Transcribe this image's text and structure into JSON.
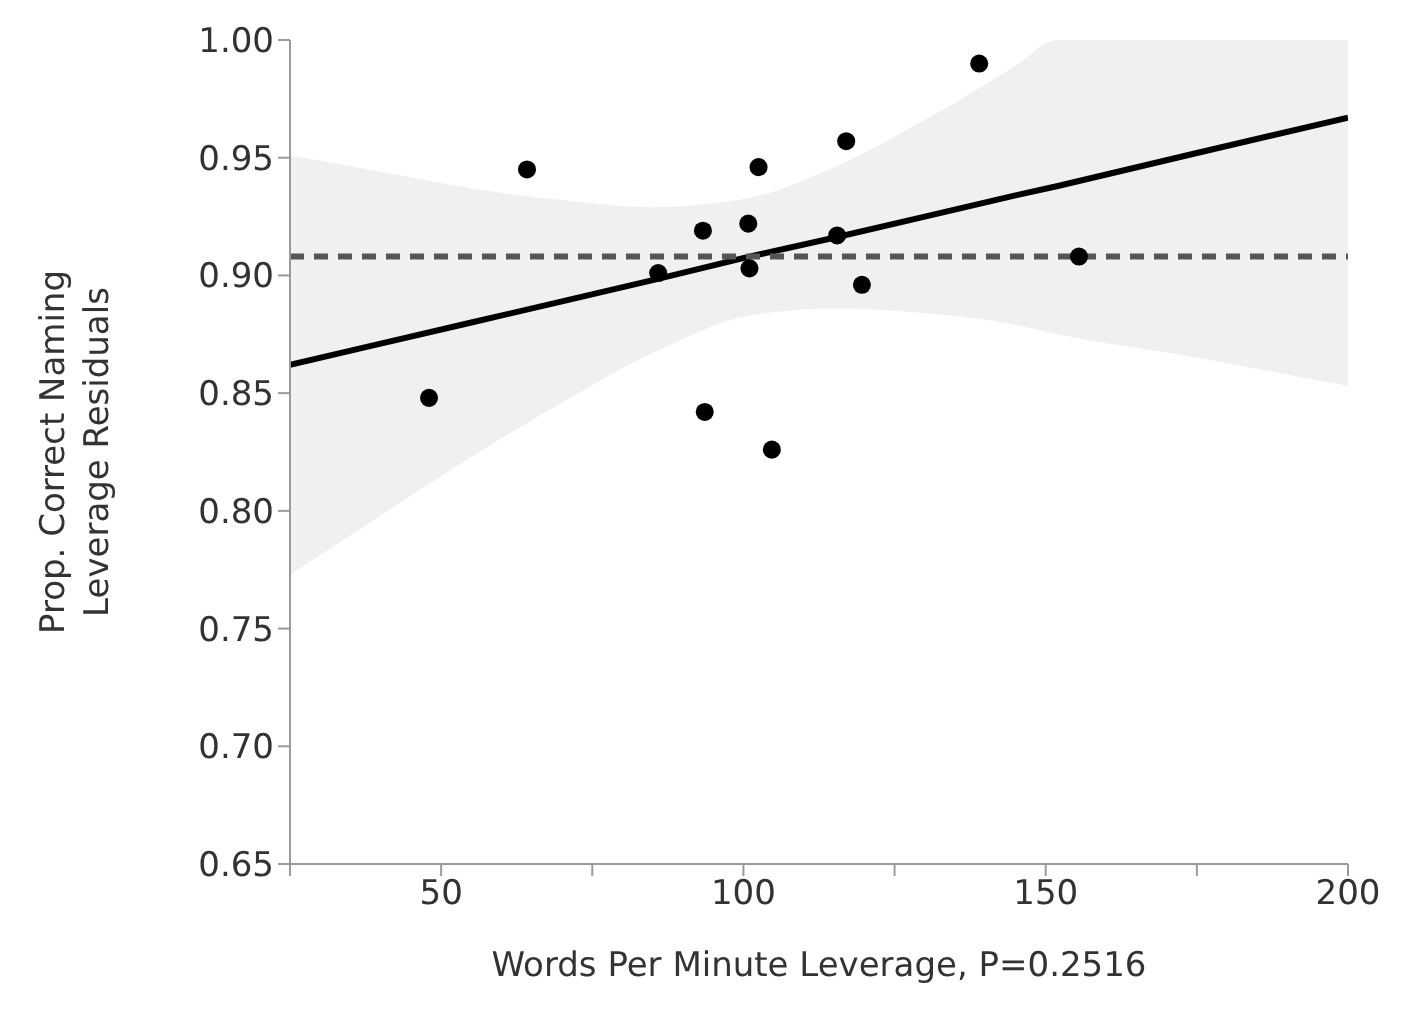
{
  "chart_data": {
    "type": "scatter",
    "xlabel": "Words Per Minute Leverage, P=0.2516",
    "ylabel": "Prop. Correct Naming\nLeverage Residuals",
    "xlim": [
      25,
      200
    ],
    "xticks": [
      {
        "value": 25,
        "label": null
      },
      50,
      {
        "value": 75,
        "label": null
      },
      100,
      {
        "value": 125,
        "label": null
      },
      150,
      {
        "value": 175,
        "label": null
      },
      200
    ],
    "ylim": [
      0.65,
      1.0
    ],
    "yticks": [
      0.65,
      {
        "value": 0.7,
        "label": "0.70"
      },
      0.75,
      {
        "value": 0.8,
        "label": "0.80"
      },
      0.85,
      {
        "value": 0.9,
        "label": "0.90"
      },
      0.95,
      {
        "value": 1.0,
        "label": "1.00"
      }
    ],
    "grid": false,
    "series": [
      {
        "marker": "circle",
        "color": "#000000",
        "x": [
          48,
          64.2,
          85.9,
          93.3,
          93.6,
          100.8,
          101,
          102.5,
          104.7,
          115.5,
          117,
          119.6,
          139,
          155.5
        ],
        "values": [
          0.848,
          0.945,
          0.901,
          0.919,
          0.842,
          0.922,
          0.903,
          0.946,
          0.826,
          0.917,
          0.957,
          0.896,
          0.99,
          0.908
        ]
      },
      {
        "type": "line",
        "marker": "none",
        "color": "#000000",
        "x": [
          25,
          40,
          55,
          70,
          85,
          101,
          115,
          130,
          145,
          152,
          175,
          200
        ],
        "values": [
          0.862,
          0.871,
          0.88,
          0.889,
          0.898,
          0.908,
          0.916,
          0.925,
          0.934,
          0.938,
          0.952,
          0.967
        ],
        "lower": [
          0.773,
          0.798,
          0.823,
          0.846,
          0.867,
          0.883,
          0.886,
          0.884,
          0.879,
          0.875,
          0.865,
          0.853
        ],
        "upper": [
          0.951,
          0.944,
          0.937,
          0.932,
          0.929,
          0.933,
          0.946,
          0.966,
          0.989,
          1.0,
          1.0,
          1.0
        ]
      }
    ],
    "ref_lines": [
      {
        "axis": "y",
        "value": 0.908,
        "color": "#555555",
        "line_style": "dashed"
      }
    ]
  }
}
